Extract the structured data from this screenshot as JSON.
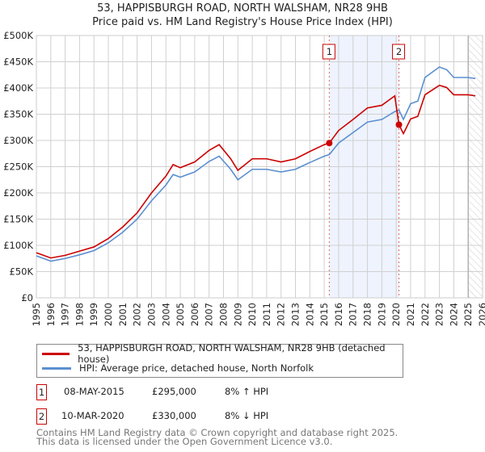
{
  "chart_data": {
    "type": "line",
    "title": "53, HAPPISBURGH ROAD, NORTH WALSHAM, NR28 9HB",
    "subtitle": "Price paid vs. HM Land Registry's House Price Index (HPI)",
    "xlim": [
      1995,
      2026
    ],
    "ylim": [
      0,
      500000
    ],
    "x_ticks": [
      "1995",
      "1996",
      "1997",
      "1998",
      "1999",
      "2000",
      "2001",
      "2002",
      "2003",
      "2004",
      "2005",
      "2006",
      "2007",
      "2008",
      "2009",
      "2010",
      "2011",
      "2012",
      "2013",
      "2014",
      "2015",
      "2016",
      "2017",
      "2018",
      "2019",
      "2020",
      "2021",
      "2022",
      "2023",
      "2024",
      "2025",
      "2026"
    ],
    "y_ticks": [
      {
        "v": 0,
        "l": "£0"
      },
      {
        "v": 50000,
        "l": "£50K"
      },
      {
        "v": 100000,
        "l": "£100K"
      },
      {
        "v": 150000,
        "l": "£150K"
      },
      {
        "v": 200000,
        "l": "£200K"
      },
      {
        "v": 250000,
        "l": "£250K"
      },
      {
        "v": 300000,
        "l": "£300K"
      },
      {
        "v": 350000,
        "l": "£350K"
      },
      {
        "v": 400000,
        "l": "£400K"
      },
      {
        "v": 450000,
        "l": "£450K"
      },
      {
        "v": 500000,
        "l": "£500K"
      }
    ],
    "grid": true,
    "series": [
      {
        "name": "53, HAPPISBURGH ROAD, NORTH WALSHAM, NR28 9HB (detached house)",
        "color": "#cc0000",
        "x": [
          1995,
          1996,
          1997,
          1998,
          1999,
          2000,
          2001,
          2002,
          2003,
          2004,
          2004.5,
          2005,
          2006,
          2007,
          2007.7,
          2008.5,
          2009,
          2010,
          2011,
          2012,
          2013,
          2014,
          2015,
          2015.35,
          2016,
          2017,
          2018,
          2019,
          2019.9,
          2020.19,
          2020.5,
          2021,
          2021.5,
          2022,
          2022.5,
          2023,
          2023.5,
          2024,
          2025,
          2025.5
        ],
        "y": [
          86000,
          76000,
          81000,
          89000,
          97000,
          113000,
          135000,
          162000,
          200000,
          232000,
          254000,
          248000,
          259000,
          281000,
          292000,
          265000,
          243000,
          265000,
          265000,
          259000,
          265000,
          279000,
          292000,
          295000,
          319000,
          340000,
          362000,
          367000,
          385000,
          330000,
          313000,
          341000,
          346000,
          387000,
          396000,
          405000,
          401000,
          387000,
          387000,
          385000
        ]
      },
      {
        "name": "HPI: Average price, detached house, North Norfolk",
        "color": "#5b8fd0",
        "x": [
          1995,
          1996,
          1997,
          1998,
          1999,
          2000,
          2001,
          2002,
          2003,
          2004,
          2004.5,
          2005,
          2006,
          2007,
          2007.7,
          2008.5,
          2009,
          2010,
          2011,
          2012,
          2013,
          2014,
          2015,
          2015.35,
          2016,
          2017,
          2018,
          2019,
          2019.9,
          2020.19,
          2020.5,
          2021,
          2021.5,
          2022,
          2022.5,
          2023,
          2023.5,
          2024,
          2025,
          2025.5
        ],
        "y": [
          80000,
          70000,
          75000,
          82000,
          90000,
          105000,
          125000,
          150000,
          185000,
          215000,
          235000,
          230000,
          240000,
          260000,
          270000,
          245000,
          225000,
          245000,
          245000,
          240000,
          245000,
          258000,
          270000,
          273000,
          295000,
          315000,
          335000,
          340000,
          355000,
          358000,
          340000,
          370000,
          375000,
          420000,
          430000,
          440000,
          435000,
          420000,
          420000,
          418000
        ]
      }
    ],
    "sales": [
      {
        "id": "1",
        "x": 2015.35,
        "y": 295000,
        "date": "08-MAY-2015",
        "price": "£295,000",
        "hpi": "8% ↑ HPI"
      },
      {
        "id": "2",
        "x": 2020.19,
        "y": 330000,
        "date": "10-MAR-2020",
        "price": "£330,000",
        "hpi": "8% ↓ HPI"
      }
    ],
    "forecast_start": 2025.0,
    "legend_placement": "below"
  },
  "footer": {
    "line1": "Contains HM Land Registry data © Crown copyright and database right 2025.",
    "line2": "This data is licensed under the Open Government Licence v3.0."
  }
}
